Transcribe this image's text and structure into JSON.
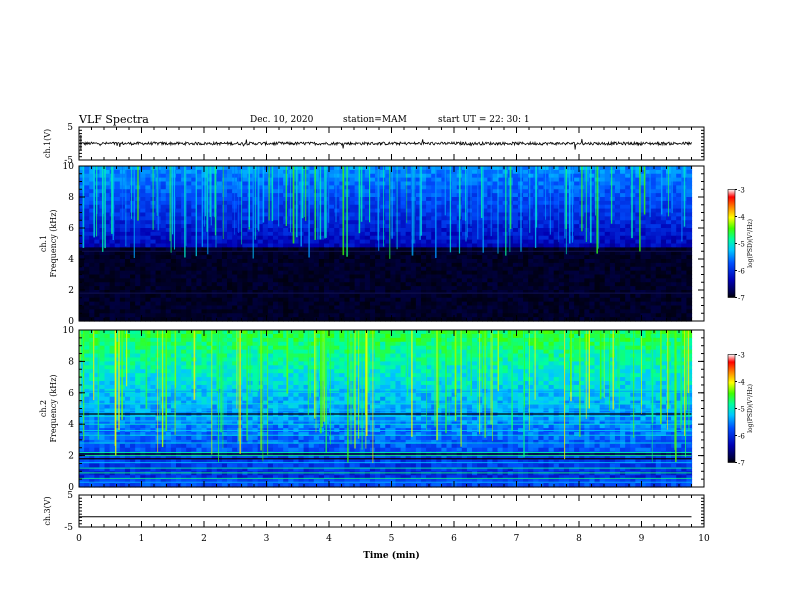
{
  "header": {
    "title": "VLF Spectra",
    "date": "Dec. 10, 2020",
    "station": "station=MAM",
    "start_ut": "start  UT =   22: 30: 1"
  },
  "chart_data": [
    {
      "type": "line",
      "name": "ch1-voltage",
      "ylabel": "ch.1(V)",
      "ylim": [
        -5,
        5
      ],
      "yticks": [
        "5",
        "-5"
      ],
      "xlim": [
        0,
        10
      ],
      "series": [
        {
          "x": [
            0,
            9.8
          ],
          "values": [
            0,
            0
          ]
        }
      ]
    },
    {
      "type": "heatmap",
      "name": "ch1-spectrogram",
      "ylabel": "ch.1\nFrequency (kHz)",
      "ylim": [
        0,
        10
      ],
      "yticks": [
        "0",
        "2",
        "4",
        "6",
        "8",
        "10"
      ],
      "xlim": [
        0,
        10
      ],
      "data_extent_x": [
        0,
        9.8
      ],
      "colorbar": {
        "label": "log(PSD)(V²/Hz)",
        "range": [
          -7,
          -3
        ],
        "ticks": [
          "-3",
          "-4",
          "-5",
          "-6",
          "-7"
        ]
      }
    },
    {
      "type": "heatmap",
      "name": "ch2-spectrogram",
      "ylabel": "ch.2\nFrequency (kHz)",
      "ylim": [
        0,
        10
      ],
      "yticks": [
        "0",
        "2",
        "4",
        "6",
        "8",
        "10"
      ],
      "xlim": [
        0,
        10
      ],
      "data_extent_x": [
        0,
        9.8
      ],
      "colorbar": {
        "label": "log(PSD)(V²/Hz)",
        "range": [
          -7,
          -3
        ],
        "ticks": [
          "-3",
          "-4",
          "-5",
          "-6",
          "-7"
        ]
      }
    },
    {
      "type": "line",
      "name": "ch3-voltage",
      "ylabel": "ch.3(V)",
      "ylim": [
        -5,
        5
      ],
      "yticks": [
        "5",
        "-5"
      ],
      "xlim": [
        0,
        10
      ],
      "series": [
        {
          "x": [
            0,
            9.8
          ],
          "values": [
            -1.8,
            -1.8
          ]
        }
      ]
    }
  ],
  "xaxis": {
    "label": "Time (min)",
    "ticks": [
      "0",
      "1",
      "2",
      "3",
      "4",
      "5",
      "6",
      "7",
      "8",
      "9",
      "10"
    ]
  }
}
